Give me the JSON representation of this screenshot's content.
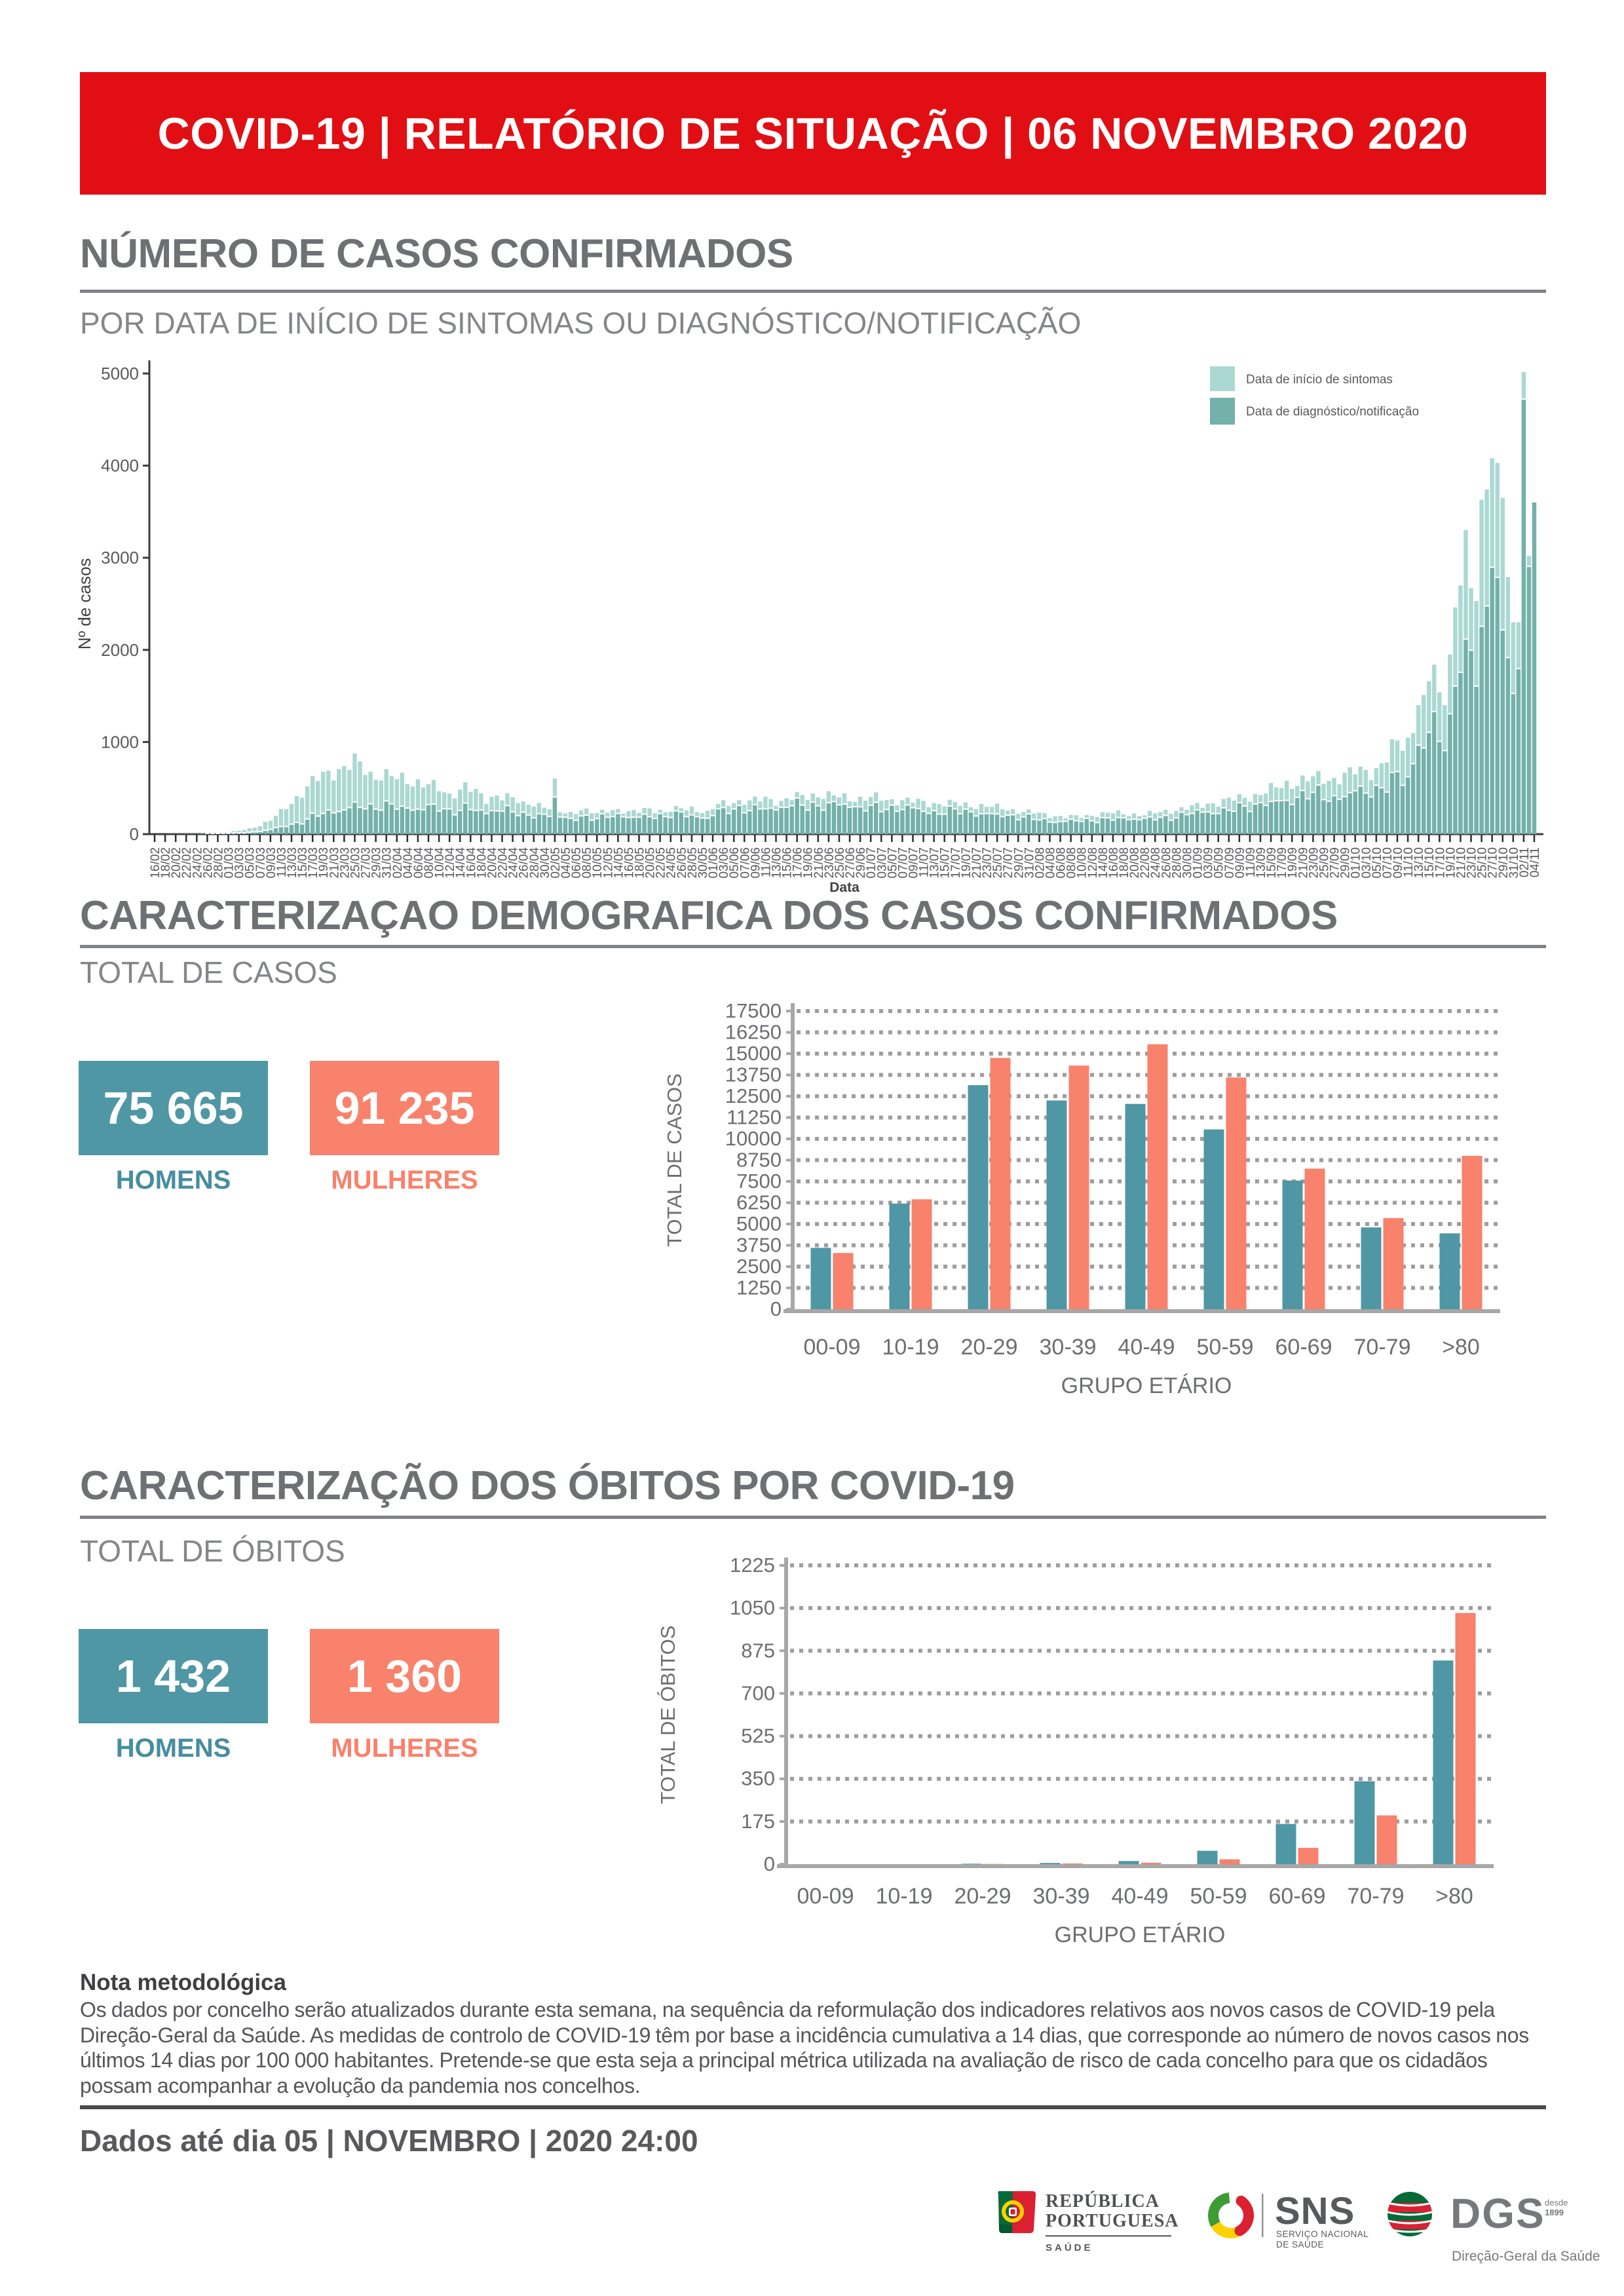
{
  "header": {
    "title": "COVID-19 | RELATÓRIO DE SITUAÇÃO | 06 NOVEMBRO 2020"
  },
  "colors": {
    "banner_red": "#e10e13",
    "title_gray": "#6d6e71",
    "rule_gray": "#808285",
    "teal": "#4f97a4",
    "salmon": "#f8826b",
    "teal_light": "#abd8d2",
    "teal_dark": "#73b1aa",
    "axis_dark": "#3c3c3e",
    "axis_gray": "#a7a7a7",
    "grid_gray": "#9e9ea0",
    "tick_text": "#6d6e70",
    "note_text": "#565659"
  },
  "sections": {
    "cases": {
      "title": "NÚMERO DE CASOS CONFIRMADOS",
      "subtitle": "POR DATA DE INÍCIO DE SINTOMAS OU DIAGNÓSTICO/NOTIFICAÇÃO"
    },
    "demographics": {
      "title": "CARACTERIZAÇAO DEMOGRAFICA DOS CASOS CONFIRMADOS",
      "subtitle": "TOTAL DE CASOS",
      "men_value": "75 665",
      "men_label": "HOMENS",
      "women_value": "91 235",
      "women_label": "MULHERES"
    },
    "deaths": {
      "title": "CARACTERIZAÇÃO DOS ÓBITOS POR COVID-19",
      "subtitle": "TOTAL DE ÓBITOS",
      "men_value": "1 432",
      "men_label": "HOMENS",
      "women_value": "1 360",
      "women_label": "MULHERES"
    }
  },
  "note": {
    "title": "Nota metodológica",
    "body": "Os dados por concelho serão atualizados durante esta semana, na sequência da reformulação dos indicadores relativos aos novos casos de COVID-19 pela Direção-Geral da Saúde. As medidas de controlo de COVID-19 têm por base a incidência cumulativa a 14 dias, que corresponde ao número de novos casos nos últimos 14 dias por 100 000 habitantes. Pretende-se que esta seja a principal métrica utilizada na avaliação de risco de cada concelho para que os cidadãos possam acompanhar a evolução da pandemia nos concelhos."
  },
  "footer": {
    "data_until": "Dados até dia 05 | NOVEMBRO | 2020 24:00",
    "logos": {
      "republica": {
        "line1": "REPÚBLICA",
        "line2": "PORTUGUESA",
        "sub": "SAÚDE"
      },
      "sns": {
        "acronym": "SNS",
        "sub1": "SERVIÇO NACIONAL",
        "sub2": "DE SAÚDE"
      },
      "dgs": {
        "acronym": "DGS",
        "since1": "desde",
        "since2": "1899",
        "sub": "Direção-Geral da Saúde"
      }
    }
  },
  "chart_data": [
    {
      "id": "timeline",
      "type": "bar",
      "mode": "overlay",
      "ylabel": "Nº de casos",
      "xlabel": "Data",
      "ylim": [
        0,
        5000
      ],
      "yticks": [
        0,
        1000,
        2000,
        3000,
        4000,
        5000
      ],
      "x_tick_every": 2,
      "legend": [
        "Data de início de sintomas",
        "Data de diagnóstico/notificação"
      ],
      "x": [
        "16/02",
        "17/02",
        "18/02",
        "19/02",
        "20/02",
        "21/02",
        "22/02",
        "23/02",
        "24/02",
        "25/02",
        "26/02",
        "27/02",
        "28/02",
        "29/02",
        "01/03",
        "02/03",
        "03/03",
        "04/03",
        "05/03",
        "06/03",
        "07/03",
        "08/03",
        "09/03",
        "10/03",
        "11/03",
        "12/03",
        "13/03",
        "14/03",
        "15/03",
        "16/03",
        "17/03",
        "18/03",
        "19/03",
        "20/03",
        "21/03",
        "22/03",
        "23/03",
        "24/03",
        "25/03",
        "26/03",
        "27/03",
        "28/03",
        "29/03",
        "30/03",
        "31/03",
        "01/04",
        "02/04",
        "03/04",
        "04/04",
        "05/04",
        "06/04",
        "07/04",
        "08/04",
        "09/04",
        "10/04",
        "11/04",
        "12/04",
        "13/04",
        "14/04",
        "15/04",
        "16/04",
        "17/04",
        "18/04",
        "19/04",
        "20/04",
        "21/04",
        "22/04",
        "23/04",
        "24/04",
        "25/04",
        "26/04",
        "27/04",
        "28/04",
        "29/04",
        "30/04",
        "01/05",
        "02/05",
        "03/05",
        "04/05",
        "05/05",
        "06/05",
        "07/05",
        "08/05",
        "09/05",
        "10/05",
        "11/05",
        "12/05",
        "13/05",
        "14/05",
        "15/05",
        "16/05",
        "17/05",
        "18/05",
        "19/05",
        "20/05",
        "21/05",
        "22/05",
        "23/05",
        "24/05",
        "25/05",
        "26/05",
        "27/05",
        "28/05",
        "29/05",
        "30/05",
        "31/05",
        "01/06",
        "02/06",
        "03/06",
        "04/06",
        "05/06",
        "06/06",
        "07/06",
        "08/06",
        "09/06",
        "10/06",
        "11/06",
        "12/06",
        "13/06",
        "14/06",
        "15/06",
        "16/06",
        "17/06",
        "18/06",
        "19/06",
        "20/06",
        "21/06",
        "22/06",
        "23/06",
        "24/06",
        "25/06",
        "26/06",
        "27/06",
        "28/06",
        "29/06",
        "30/06",
        "01/07",
        "02/07",
        "03/07",
        "04/07",
        "05/07",
        "06/07",
        "07/07",
        "08/07",
        "09/07",
        "10/07",
        "11/07",
        "12/07",
        "13/07",
        "14/07",
        "15/07",
        "16/07",
        "17/07",
        "18/07",
        "19/07",
        "20/07",
        "21/07",
        "22/07",
        "23/07",
        "24/07",
        "25/07",
        "26/07",
        "27/07",
        "28/07",
        "29/07",
        "30/07",
        "31/07",
        "01/08",
        "02/08",
        "03/08",
        "04/08",
        "05/08",
        "06/08",
        "07/08",
        "08/08",
        "09/08",
        "10/08",
        "11/08",
        "12/08",
        "13/08",
        "14/08",
        "15/08",
        "16/08",
        "17/08",
        "18/08",
        "19/08",
        "20/08",
        "21/08",
        "22/08",
        "23/08",
        "24/08",
        "25/08",
        "26/08",
        "27/08",
        "28/08",
        "29/08",
        "30/08",
        "31/08",
        "01/09",
        "02/09",
        "03/09",
        "04/09",
        "05/09",
        "06/09",
        "07/09",
        "08/09",
        "09/09",
        "10/09",
        "11/09",
        "12/09",
        "13/09",
        "14/09",
        "15/09",
        "16/09",
        "17/09",
        "18/09",
        "19/09",
        "20/09",
        "21/09",
        "22/09",
        "23/09",
        "24/09",
        "25/09",
        "26/09",
        "27/09",
        "28/09",
        "29/09",
        "30/09",
        "01/10",
        "02/10",
        "03/10",
        "04/10",
        "05/10",
        "06/10",
        "07/10",
        "08/10",
        "09/10",
        "10/10",
        "11/10",
        "12/10",
        "13/10",
        "14/10",
        "15/10",
        "16/10",
        "17/10",
        "18/10",
        "19/10",
        "20/10",
        "21/10",
        "22/10",
        "23/10",
        "24/10",
        "25/10",
        "26/10",
        "27/10",
        "28/10",
        "29/10",
        "30/10",
        "31/10",
        "01/11",
        "02/11",
        "03/11",
        "04/11"
      ],
      "series": [
        {
          "name": "Data de início de sintomas",
          "color_key": "teal_light",
          "values": [
            0,
            0,
            0,
            1,
            1,
            1,
            2,
            2,
            2,
            4,
            5,
            5,
            9,
            12,
            19,
            32,
            36,
            45,
            64,
            70,
            85,
            133,
            145,
            199,
            273,
            272,
            329,
            412,
            395,
            517,
            632,
            576,
            676,
            689,
            582,
            705,
            739,
            699,
            875,
            789,
            643,
            678,
            590,
            581,
            705,
            629,
            596,
            667,
            543,
            517,
            595,
            507,
            541,
            588,
            466,
            453,
            440,
            388,
            483,
            562,
            459,
            490,
            443,
            329,
            404,
            419,
            366,
            445,
            401,
            337,
            354,
            318,
            299,
            338,
            287,
            270,
            603,
            237,
            225,
            242,
            217,
            257,
            278,
            226,
            229,
            265,
            233,
            260,
            273,
            222,
            249,
            262,
            232,
            284,
            279,
            227,
            263,
            237,
            242,
            305,
            282,
            258,
            298,
            239,
            228,
            254,
            271,
            327,
            368,
            306,
            336,
            370,
            318,
            366,
            409,
            355,
            406,
            381,
            307,
            361,
            389,
            371,
            457,
            425,
            371,
            442,
            399,
            382,
            466,
            420,
            399,
            444,
            357,
            350,
            405,
            364,
            403,
            454,
            363,
            370,
            379,
            313,
            368,
            396,
            341,
            383,
            362,
            292,
            337,
            326,
            302,
            373,
            350,
            307,
            344,
            292,
            271,
            329,
            296,
            297,
            333,
            270,
            255,
            271,
            220,
            241,
            268,
            223,
            233,
            227,
            175,
            194,
            198,
            171,
            208,
            205,
            175,
            207,
            198,
            185,
            238,
            232,
            226,
            258,
            216,
            196,
            225,
            196,
            204,
            253,
            227,
            240,
            265,
            221,
            251,
            292,
            265,
            314,
            338,
            286,
            331,
            335,
            299,
            381,
            395,
            364,
            432,
            395,
            352,
            435,
            424,
            440,
            555,
            507,
            500,
            579,
            491,
            524,
            637,
            572,
            628,
            686,
            546,
            578,
            611,
            541,
            668,
            725,
            648,
            732,
            696,
            586,
            716,
            770,
            778,
            1030,
            1016,
            905,
            1047,
            1097,
            1400,
            1510,
            1660,
            1840,
            1540,
            1400,
            1950,
            2460,
            2700,
            3300,
            2670,
            2530,
            3630,
            3740,
            4080,
            4030,
            3650,
            2790,
            2300,
            2300,
            5015,
            3020,
            30
          ]
        },
        {
          "name": "Data de diagnóstico/notificação",
          "color_key": "teal_dark",
          "values": [
            0,
            0,
            0,
            0,
            0,
            0,
            0,
            0,
            0,
            0,
            1,
            1,
            1,
            2,
            3,
            6,
            7,
            8,
            14,
            18,
            22,
            35,
            45,
            65,
            76,
            75,
            102,
            120,
            104,
            158,
            221,
            189,
            217,
            256,
            224,
            238,
            256,
            281,
            342,
            283,
            267,
            322,
            264,
            253,
            354,
            322,
            264,
            297,
            276,
            253,
            265,
            257,
            313,
            319,
            243,
            269,
            267,
            202,
            250,
            331,
            260,
            250,
            255,
            216,
            248,
            245,
            243,
            303,
            235,
            194,
            232,
            201,
            170,
            215,
            209,
            186,
            397,
            179,
            176,
            164,
            143,
            191,
            200,
            144,
            162,
            214,
            176,
            184,
            217,
            182,
            174,
            177,
            177,
            210,
            182,
            164,
            217,
            183,
            174,
            246,
            234,
            183,
            202,
            183,
            169,
            166,
            194,
            268,
            282,
            218,
            267,
            305,
            225,
            248,
            313,
            266,
            268,
            275,
            256,
            284,
            284,
            301,
            385,
            308,
            254,
            341,
            301,
            253,
            334,
            347,
            311,
            319,
            285,
            291,
            290,
            245,
            306,
            339,
            237,
            261,
            308,
            241,
            260,
            310,
            280,
            271,
            240,
            218,
            248,
            210,
            209,
            298,
            267,
            214,
            265,
            236,
            190,
            214,
            217,
            216,
            212,
            183,
            200,
            203,
            150,
            181,
            213,
            153,
            148,
            162,
            124,
            120,
            130,
            132,
            155,
            139,
            131,
            165,
            138,
            119,
            173,
            170,
            145,
            174,
            170,
            150,
            156,
            149,
            166,
            180,
            148,
            176,
            197,
            143,
            170,
            231,
            204,
            218,
            256,
            232,
            235,
            216,
            216,
            279,
            252,
            241,
            334,
            298,
            239,
            320,
            335,
            305,
            348,
            355,
            356,
            359,
            314,
            392,
            467,
            377,
            447,
            526,
            368,
            350,
            411,
            372,
            400,
            444,
            464,
            515,
            439,
            397,
            523,
            497,
            450,
            663,
            672,
            523,
            616,
            758,
            959,
            929,
            1098,
            1324,
            1000,
            900,
            1300,
            1600,
            1750,
            2110,
            1990,
            1600,
            2250,
            2470,
            2890,
            2780,
            2210,
            1910,
            1520,
            1790,
            4715,
            2900,
            3600
          ]
        }
      ]
    },
    {
      "id": "cases_by_age",
      "type": "bar",
      "mode": "grouped",
      "ylabel": "TOTAL DE CASOS",
      "xlabel": "GRUPO ETÁRIO",
      "ylim": [
        0,
        17500
      ],
      "yticks": [
        0,
        1250,
        2500,
        3750,
        5000,
        6250,
        7500,
        8750,
        10000,
        11250,
        12500,
        13750,
        15000,
        16250,
        17500
      ],
      "categories": [
        "00-09",
        "10-19",
        "20-29",
        "30-39",
        "40-49",
        "50-59",
        "60-69",
        "70-79",
        ">80"
      ],
      "series": [
        {
          "name": "Homens",
          "color_key": "teal",
          "values": [
            3600,
            6200,
            13150,
            12250,
            12050,
            10550,
            7550,
            4800,
            4450
          ]
        },
        {
          "name": "Mulheres",
          "color_key": "salmon",
          "values": [
            3300,
            6450,
            14750,
            14300,
            15550,
            13600,
            8250,
            5350,
            9000
          ]
        }
      ]
    },
    {
      "id": "deaths_by_age",
      "type": "bar",
      "mode": "grouped",
      "ylabel": "TOTAL DE ÓBITOS",
      "xlabel": "GRUPO ETÁRIO",
      "ylim": [
        0,
        1225
      ],
      "yticks": [
        0,
        175,
        350,
        525,
        700,
        875,
        1050,
        1225
      ],
      "categories": [
        "00-09",
        "10-19",
        "20-29",
        "30-39",
        "40-49",
        "50-59",
        "60-69",
        "70-79",
        ">80"
      ],
      "series": [
        {
          "name": "Homens",
          "color_key": "teal",
          "values": [
            0,
            0,
            2,
            5,
            13,
            55,
            165,
            340,
            835
          ]
        },
        {
          "name": "Mulheres",
          "color_key": "salmon",
          "values": [
            0,
            0,
            1,
            3,
            6,
            20,
            67,
            200,
            1030
          ]
        }
      ]
    }
  ]
}
